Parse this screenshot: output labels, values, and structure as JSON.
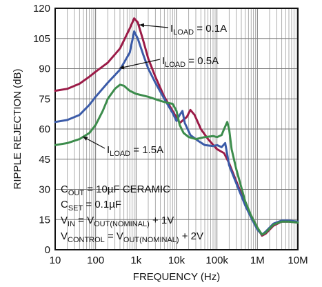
{
  "chart_data": {
    "type": "line",
    "title": "",
    "xlabel": "FREQUENCY (Hz)",
    "ylabel": "RIPPLE REJECTION (dB)",
    "x_scale": "log",
    "xlim": [
      10,
      10000000
    ],
    "ylim": [
      0,
      120
    ],
    "grid": true,
    "x_ticks": [
      10,
      100,
      1000,
      10000,
      100000,
      1000000,
      10000000
    ],
    "x_tick_labels": [
      "10",
      "100",
      "1k",
      "10k",
      "100k",
      "1M",
      "10M"
    ],
    "y_ticks": [
      0,
      15,
      30,
      45,
      60,
      75,
      90,
      105,
      120
    ],
    "y_tick_labels": [
      "0",
      "15",
      "30",
      "45",
      "60",
      "75",
      "90",
      "105",
      "120"
    ],
    "series": [
      {
        "name": "I_LOAD = 0.1A",
        "label_main": "I",
        "label_sub": "LOAD",
        "label_tail": " = 0.1A",
        "color": "#9b1b47",
        "points": [
          [
            10,
            79
          ],
          [
            20,
            80
          ],
          [
            40,
            82.5
          ],
          [
            70,
            86
          ],
          [
            100,
            88.5
          ],
          [
            200,
            93
          ],
          [
            400,
            100
          ],
          [
            700,
            110
          ],
          [
            900,
            115
          ],
          [
            1100,
            113
          ],
          [
            1500,
            104
          ],
          [
            2000,
            95
          ],
          [
            3000,
            86
          ],
          [
            5000,
            76
          ],
          [
            8000,
            69
          ],
          [
            12000,
            63
          ],
          [
            18000,
            66
          ],
          [
            22000,
            69.5
          ],
          [
            28000,
            67
          ],
          [
            40000,
            60
          ],
          [
            60000,
            55
          ],
          [
            100000,
            50
          ],
          [
            150000,
            48
          ],
          [
            200000,
            43
          ],
          [
            300000,
            34
          ],
          [
            500000,
            23
          ],
          [
            700000,
            17
          ],
          [
            1000000,
            11
          ],
          [
            1300000,
            7
          ],
          [
            1600000,
            8
          ],
          [
            2500000,
            12
          ],
          [
            4000000,
            14
          ],
          [
            6000000,
            14
          ],
          [
            10000000,
            13.5
          ]
        ]
      },
      {
        "name": "I_LOAD = 0.5A",
        "label_main": "I",
        "label_sub": "LOAD",
        "label_tail": " = 0.5A",
        "color": "#3b5ba8",
        "points": [
          [
            10,
            63.5
          ],
          [
            20,
            64.5
          ],
          [
            40,
            67
          ],
          [
            70,
            72
          ],
          [
            100,
            76
          ],
          [
            200,
            83
          ],
          [
            400,
            89.5
          ],
          [
            700,
            98
          ],
          [
            900,
            108.5
          ],
          [
            1100,
            105
          ],
          [
            1500,
            97
          ],
          [
            2000,
            90
          ],
          [
            3000,
            83
          ],
          [
            5000,
            75
          ],
          [
            8000,
            68
          ],
          [
            10000,
            64
          ],
          [
            12000,
            67
          ],
          [
            14000,
            69
          ],
          [
            16000,
            63
          ],
          [
            22000,
            57
          ],
          [
            35000,
            54
          ],
          [
            50000,
            52
          ],
          [
            80000,
            51.5
          ],
          [
            100000,
            52
          ],
          [
            130000,
            51
          ],
          [
            160000,
            53
          ],
          [
            200000,
            42
          ],
          [
            300000,
            33
          ],
          [
            500000,
            22
          ],
          [
            700000,
            16
          ],
          [
            1000000,
            10
          ],
          [
            1300000,
            7.5
          ],
          [
            1600000,
            9
          ],
          [
            2500000,
            13
          ],
          [
            4000000,
            14.5
          ],
          [
            6000000,
            14.5
          ],
          [
            10000000,
            14
          ]
        ]
      },
      {
        "name": "I_LOAD = 1.5A",
        "label_main": "I",
        "label_sub": "LOAD",
        "label_tail": " = 1.5A",
        "color": "#3c8c4c",
        "points": [
          [
            10,
            52
          ],
          [
            20,
            53
          ],
          [
            40,
            55
          ],
          [
            70,
            58
          ],
          [
            100,
            62
          ],
          [
            150,
            69
          ],
          [
            200,
            75
          ],
          [
            300,
            80
          ],
          [
            400,
            82
          ],
          [
            500,
            81.5
          ],
          [
            700,
            79
          ],
          [
            1000,
            77.5
          ],
          [
            2000,
            76
          ],
          [
            4000,
            74
          ],
          [
            6000,
            73
          ],
          [
            8000,
            72.5
          ],
          [
            10000,
            69
          ],
          [
            12000,
            62
          ],
          [
            15000,
            58
          ],
          [
            20000,
            56
          ],
          [
            30000,
            55
          ],
          [
            50000,
            56
          ],
          [
            80000,
            56.5
          ],
          [
            100000,
            56
          ],
          [
            130000,
            57
          ],
          [
            150000,
            60
          ],
          [
            180000,
            63.5
          ],
          [
            200000,
            60
          ],
          [
            230000,
            50
          ],
          [
            300000,
            40
          ],
          [
            500000,
            24
          ],
          [
            700000,
            17
          ],
          [
            1000000,
            11
          ],
          [
            1300000,
            7.5
          ],
          [
            1600000,
            8.5
          ],
          [
            2500000,
            12.5
          ],
          [
            4000000,
            14
          ],
          [
            6000000,
            14
          ],
          [
            10000000,
            13.5
          ]
        ]
      }
    ],
    "annotations": [
      {
        "parts": [
          [
            "C",
            ""
          ],
          [
            "OUT",
            "sub"
          ],
          [
            " = 10µF CERAMIC",
            ""
          ]
        ]
      },
      {
        "parts": [
          [
            "C",
            ""
          ],
          [
            "SET",
            "sub"
          ],
          [
            " = 0.1µF",
            ""
          ]
        ]
      },
      {
        "parts": [
          [
            "V",
            ""
          ],
          [
            "IN",
            "sub"
          ],
          [
            " = V",
            ""
          ],
          [
            "OUT(NOMINAL)",
            "sub"
          ],
          [
            " + 1V",
            ""
          ]
        ]
      },
      {
        "parts": [
          [
            "V",
            ""
          ],
          [
            "CONTROL",
            "sub"
          ],
          [
            " = V",
            ""
          ],
          [
            "OUT(NOMINAL)",
            "sub"
          ],
          [
            " + 2V",
            ""
          ]
        ]
      }
    ]
  }
}
